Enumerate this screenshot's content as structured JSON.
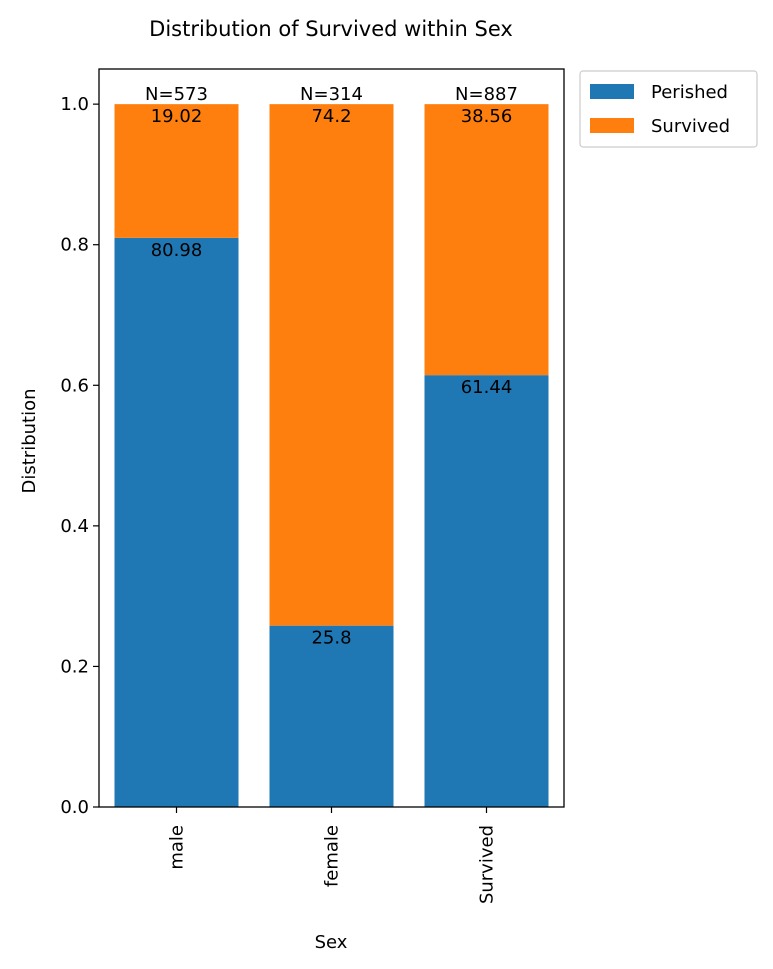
{
  "chart_data": {
    "type": "bar",
    "stacked": true,
    "title": "Distribution of Survived within Sex",
    "xlabel": "Sex",
    "ylabel": "Distribution",
    "ylim": [
      0,
      1.05
    ],
    "yticks": [
      0.0,
      0.2,
      0.4,
      0.6,
      0.8,
      1.0
    ],
    "ytick_labels": [
      "0.0",
      "0.2",
      "0.4",
      "0.6",
      "0.8",
      "1.0"
    ],
    "categories": [
      "male",
      "female",
      "Survived"
    ],
    "totals": [
      "N=573",
      "N=314",
      "N=887"
    ],
    "series": [
      {
        "name": "Perished",
        "color": "#1f77b4",
        "values": [
          0.8098,
          0.258,
          0.6144
        ],
        "labels": [
          "80.98",
          "25.8",
          "61.44"
        ]
      },
      {
        "name": "Survived",
        "color": "#ff7f0e",
        "values": [
          0.1902,
          0.742,
          0.3856
        ],
        "labels": [
          "19.02",
          "74.2",
          "38.56"
        ]
      }
    ],
    "legend": "outside-top-right",
    "grid": false
  }
}
